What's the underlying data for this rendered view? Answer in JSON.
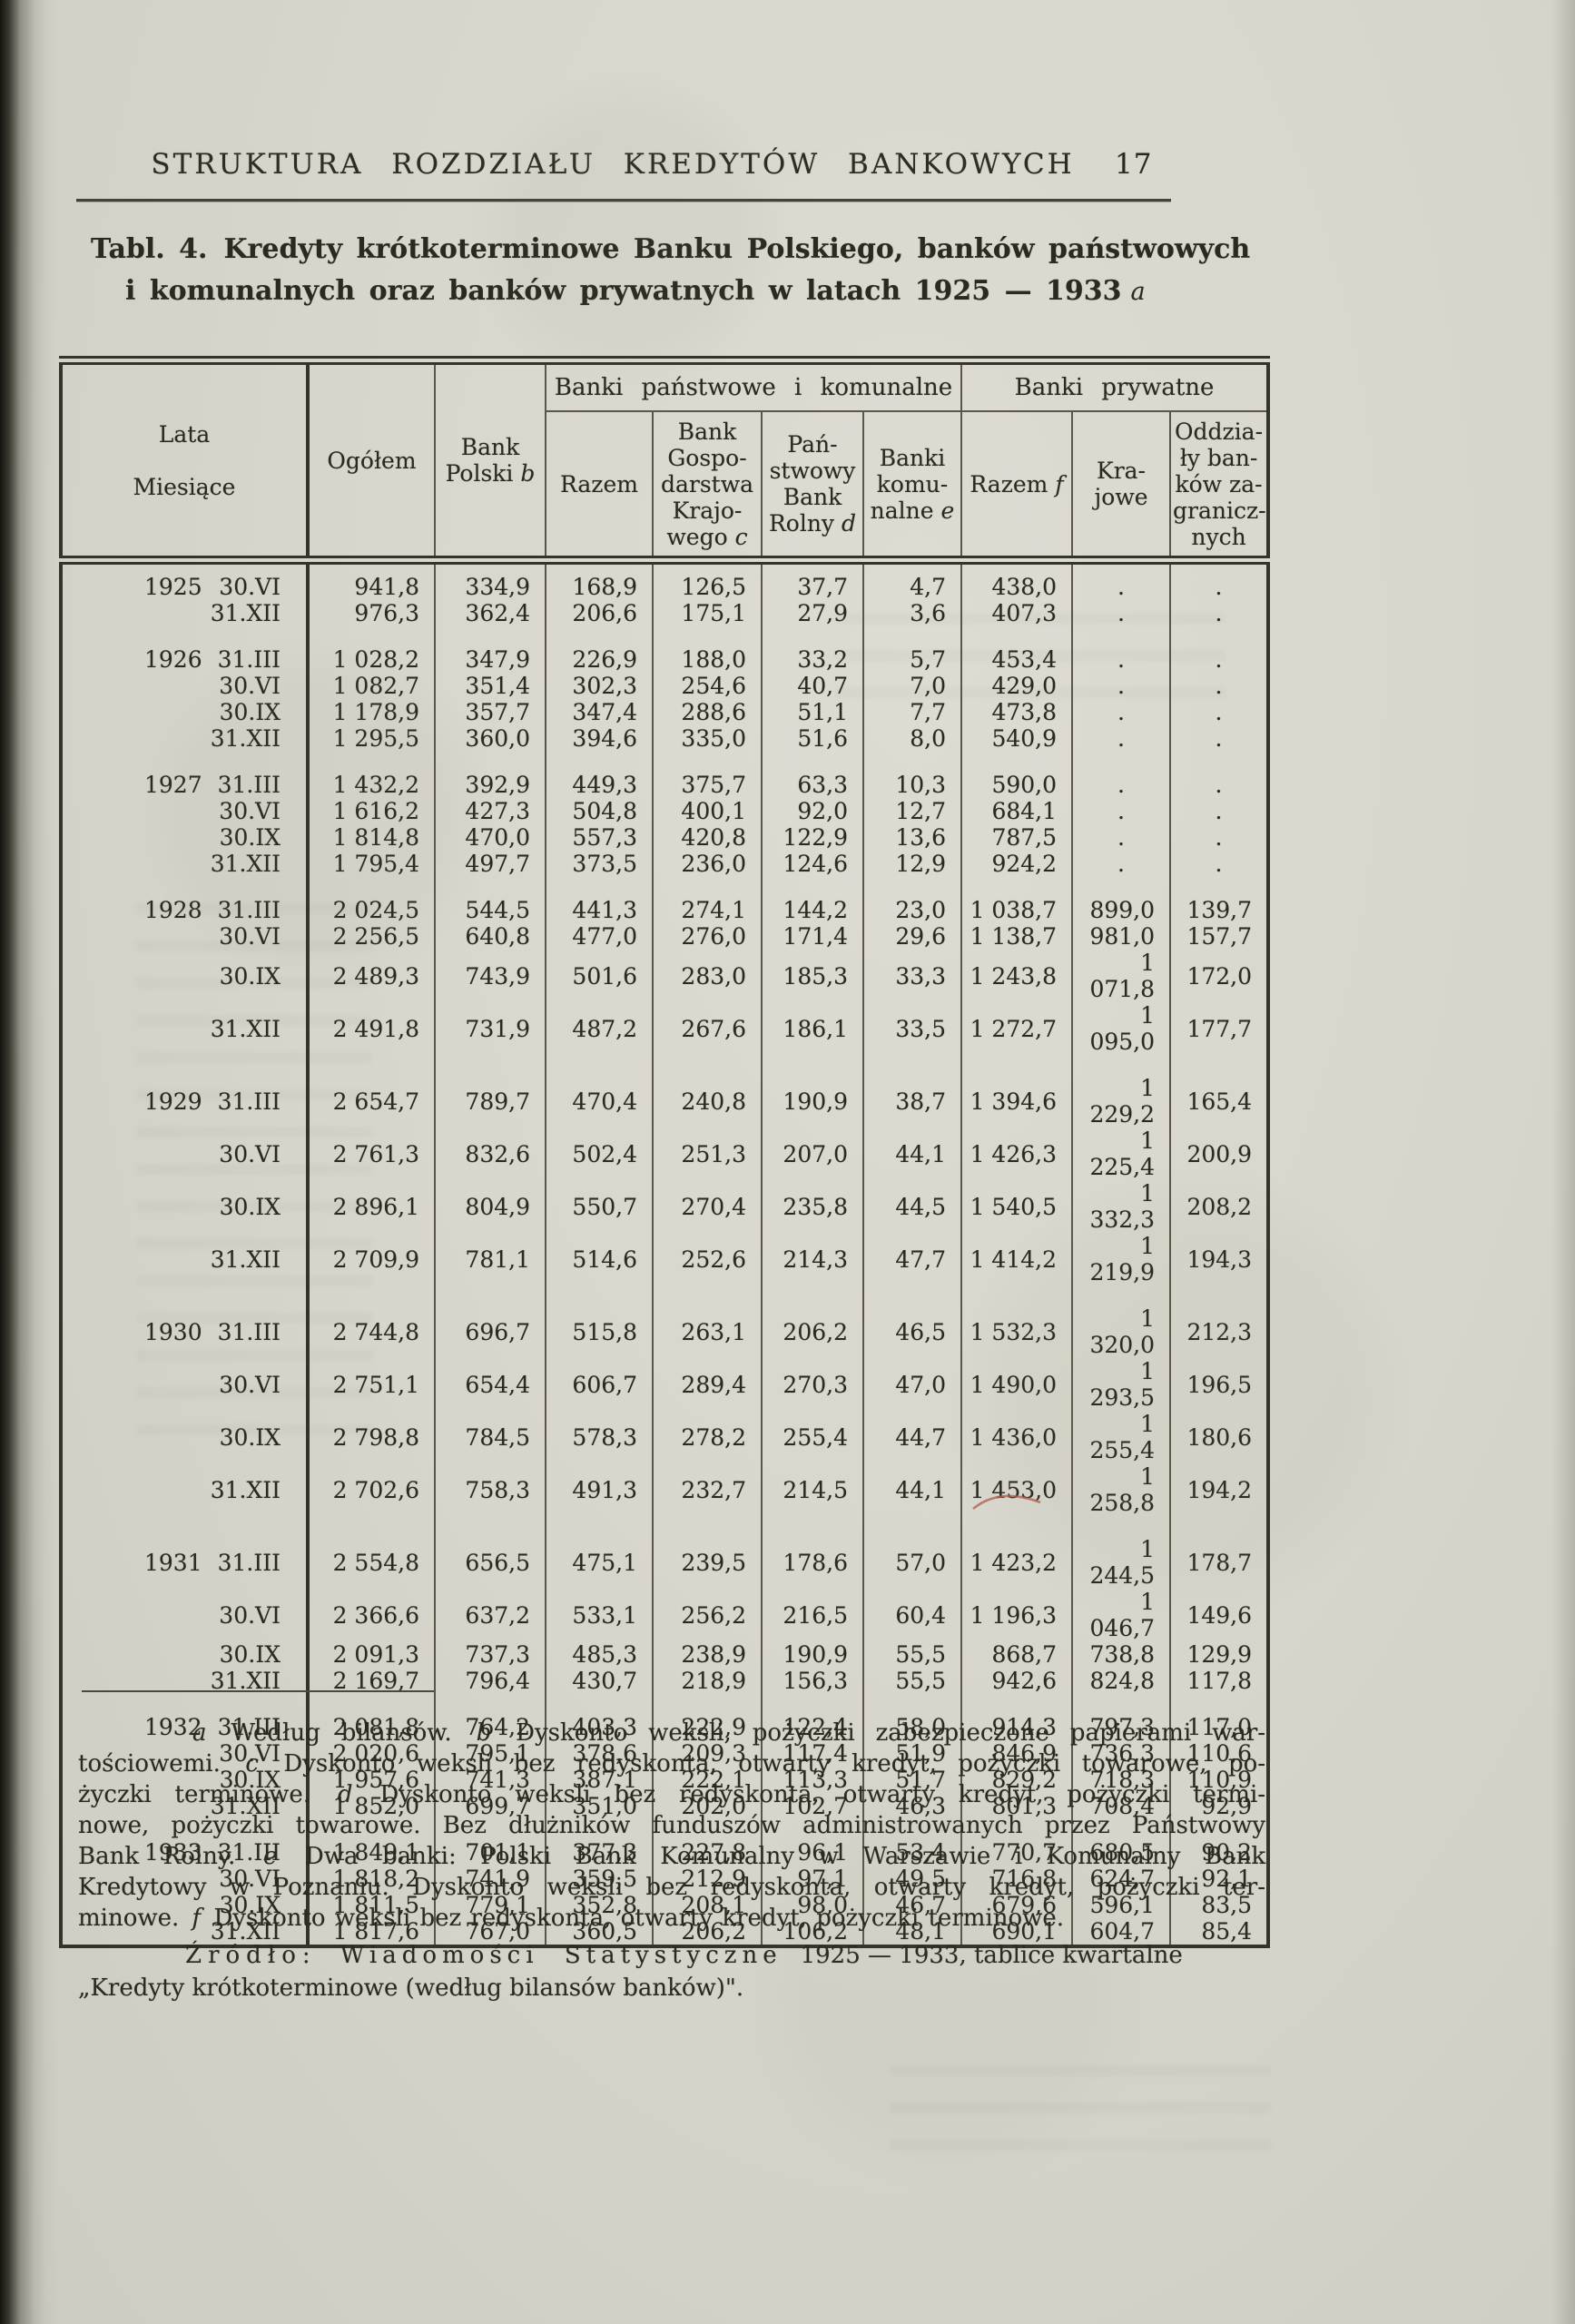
{
  "colors": {
    "paper": "#d7d6cc",
    "ink": "#2b2920",
    "pencil_mark": "#b05a4a"
  },
  "header": {
    "title": "STRUKTURA ROZDZIAŁU KREDYTÓW BANKOWYCH",
    "page_number": "17"
  },
  "caption": {
    "prefix": "Tabl. 4.",
    "line1": "Kredyty krótkoterminowe Banku Polskiego, banków państwowych",
    "line2": "i komunalnych oraz banków prywatnych w latach 1925 — 1933",
    "note": "a"
  },
  "table": {
    "groups": [
      {
        "label": "Banki państwowe i komunalne",
        "colspan": 4
      },
      {
        "label": "Banki prywatne",
        "colspan": 3
      }
    ],
    "columns": [
      {
        "id": "lata-miesiace",
        "label": "Lata\n\nMiesiące"
      },
      {
        "id": "ogolem",
        "label": "Ogółem"
      },
      {
        "id": "bank-polski",
        "label": "Bank\nPolski",
        "note": "b"
      },
      {
        "id": "razem-panstwowe",
        "label": "Razem"
      },
      {
        "id": "bank-gospodarstwa-krajowego",
        "label": "Bank\nGospo-\ndarstwa\nKrajo-\nwego",
        "note": "c"
      },
      {
        "id": "panstwowy-bank-rolny",
        "label": "Pań-\nstwowy\nBank\nRolny",
        "note": "d"
      },
      {
        "id": "banki-komunalne",
        "label": "Banki\nkomu-\nnalne",
        "note": "e"
      },
      {
        "id": "razem-prywatne",
        "label": "Razem",
        "note": "f"
      },
      {
        "id": "krajowe",
        "label": "Kra-\njowe"
      },
      {
        "id": "oddzialy-bankow-zagranicznych",
        "label": "Oddzia-\nły ban-\nków za-\ngranicz-\nnych"
      }
    ],
    "year_groups": [
      {
        "year": "1925",
        "rows": [
          {
            "date": "30.VI",
            "values": [
              "941,8",
              "334,9",
              "168,9",
              "126,5",
              "37,7",
              "4,7",
              "438,0",
              ".",
              "."
            ]
          },
          {
            "date": "31.XII",
            "values": [
              "976,3",
              "362,4",
              "206,6",
              "175,1",
              "27,9",
              "3,6",
              "407,3",
              ".",
              "."
            ]
          }
        ]
      },
      {
        "year": "1926",
        "rows": [
          {
            "date": "31.III",
            "values": [
              "1 028,2",
              "347,9",
              "226,9",
              "188,0",
              "33,2",
              "5,7",
              "453,4",
              ".",
              "."
            ]
          },
          {
            "date": "30.VI",
            "values": [
              "1 082,7",
              "351,4",
              "302,3",
              "254,6",
              "40,7",
              "7,0",
              "429,0",
              ".",
              "."
            ]
          },
          {
            "date": "30.IX",
            "values": [
              "1 178,9",
              "357,7",
              "347,4",
              "288,6",
              "51,1",
              "7,7",
              "473,8",
              ".",
              "."
            ]
          },
          {
            "date": "31.XII",
            "values": [
              "1 295,5",
              "360,0",
              "394,6",
              "335,0",
              "51,6",
              "8,0",
              "540,9",
              ".",
              "."
            ]
          }
        ]
      },
      {
        "year": "1927",
        "rows": [
          {
            "date": "31.III",
            "values": [
              "1 432,2",
              "392,9",
              "449,3",
              "375,7",
              "63,3",
              "10,3",
              "590,0",
              ".",
              "."
            ]
          },
          {
            "date": "30.VI",
            "values": [
              "1 616,2",
              "427,3",
              "504,8",
              "400,1",
              "92,0",
              "12,7",
              "684,1",
              ".",
              "."
            ]
          },
          {
            "date": "30.IX",
            "values": [
              "1 814,8",
              "470,0",
              "557,3",
              "420,8",
              "122,9",
              "13,6",
              "787,5",
              ".",
              "."
            ]
          },
          {
            "date": "31.XII",
            "values": [
              "1 795,4",
              "497,7",
              "373,5",
              "236,0",
              "124,6",
              "12,9",
              "924,2",
              ".",
              "."
            ]
          }
        ]
      },
      {
        "year": "1928",
        "rows": [
          {
            "date": "31.III",
            "values": [
              "2 024,5",
              "544,5",
              "441,3",
              "274,1",
              "144,2",
              "23,0",
              "1 038,7",
              "899,0",
              "139,7"
            ]
          },
          {
            "date": "30.VI",
            "values": [
              "2 256,5",
              "640,8",
              "477,0",
              "276,0",
              "171,4",
              "29,6",
              "1 138,7",
              "981,0",
              "157,7"
            ]
          },
          {
            "date": "30.IX",
            "values": [
              "2 489,3",
              "743,9",
              "501,6",
              "283,0",
              "185,3",
              "33,3",
              "1 243,8",
              "1 071,8",
              "172,0"
            ]
          },
          {
            "date": "31.XII",
            "values": [
              "2 491,8",
              "731,9",
              "487,2",
              "267,6",
              "186,1",
              "33,5",
              "1 272,7",
              "1 095,0",
              "177,7"
            ]
          }
        ]
      },
      {
        "year": "1929",
        "rows": [
          {
            "date": "31.III",
            "values": [
              "2 654,7",
              "789,7",
              "470,4",
              "240,8",
              "190,9",
              "38,7",
              "1 394,6",
              "1 229,2",
              "165,4"
            ]
          },
          {
            "date": "30.VI",
            "values": [
              "2 761,3",
              "832,6",
              "502,4",
              "251,3",
              "207,0",
              "44,1",
              "1 426,3",
              "1 225,4",
              "200,9"
            ]
          },
          {
            "date": "30.IX",
            "values": [
              "2 896,1",
              "804,9",
              "550,7",
              "270,4",
              "235,8",
              "44,5",
              "1 540,5",
              "1 332,3",
              "208,2"
            ]
          },
          {
            "date": "31.XII",
            "values": [
              "2 709,9",
              "781,1",
              "514,6",
              "252,6",
              "214,3",
              "47,7",
              "1 414,2",
              "1 219,9",
              "194,3"
            ]
          }
        ]
      },
      {
        "year": "1930",
        "rows": [
          {
            "date": "31.III",
            "values": [
              "2 744,8",
              "696,7",
              "515,8",
              "263,1",
              "206,2",
              "46,5",
              "1 532,3",
              "1 320,0",
              "212,3"
            ]
          },
          {
            "date": "30.VI",
            "values": [
              "2 751,1",
              "654,4",
              "606,7",
              "289,4",
              "270,3",
              "47,0",
              "1 490,0",
              "1 293,5",
              "196,5"
            ]
          },
          {
            "date": "30.IX",
            "values": [
              "2 798,8",
              "784,5",
              "578,3",
              "278,2",
              "255,4",
              "44,7",
              "1 436,0",
              "1 255,4",
              "180,6"
            ]
          },
          {
            "date": "31.XII",
            "values": [
              "2 702,6",
              "758,3",
              "491,3",
              "232,7",
              "214,5",
              "44,1",
              "1 453,0",
              "1 258,8",
              "194,2"
            ]
          }
        ]
      },
      {
        "year": "1931",
        "rows": [
          {
            "date": "31.III",
            "values": [
              "2 554,8",
              "656,5",
              "475,1",
              "239,5",
              "178,6",
              "57,0",
              "1 423,2",
              "1 244,5",
              "178,7"
            ]
          },
          {
            "date": "30.VI",
            "values": [
              "2 366,6",
              "637,2",
              "533,1",
              "256,2",
              "216,5",
              "60,4",
              "1 196,3",
              "1 046,7",
              "149,6"
            ]
          },
          {
            "date": "30.IX",
            "values": [
              "2 091,3",
              "737,3",
              "485,3",
              "238,9",
              "190,9",
              "55,5",
              "868,7",
              "738,8",
              "129,9"
            ]
          },
          {
            "date": "31.XII",
            "values": [
              "2 169,7",
              "796,4",
              "430,7",
              "218,9",
              "156,3",
              "55,5",
              "942,6",
              "824,8",
              "117,8"
            ]
          }
        ]
      },
      {
        "year": "1932",
        "rows": [
          {
            "date": "31.III",
            "values": [
              "2 081,8",
              "764,2",
              "403,3",
              "222,9",
              "122,4",
              "58,0",
              "914,3",
              "797,3",
              "117,0"
            ]
          },
          {
            "date": "30.VI",
            "values": [
              "2 020,6",
              "795,1",
              "378,6",
              "209,3",
              "117,4",
              "51,9",
              "846,9",
              "736,3",
              "110,6"
            ]
          },
          {
            "date": "30.IX",
            "values": [
              "1 957,6",
              "741,3",
              "387,1",
              "222,1",
              "113,3",
              "51,7",
              "829,2",
              "718,3",
              "110,9"
            ]
          },
          {
            "date": "31.XII",
            "values": [
              "1 852,0",
              "699,7",
              "351,0",
              "202,0",
              "102,7",
              "46,3",
              "801,3",
              "708,4",
              "92,9"
            ]
          }
        ]
      },
      {
        "year": "1933",
        "rows": [
          {
            "date": "31.III",
            "values": [
              "1 849,1",
              "701,1",
              "377,3",
              "227,8",
              "96,1",
              "53,4",
              "770,7",
              "680,5",
              "90,2"
            ]
          },
          {
            "date": "30.VI",
            "values": [
              "1 818,2",
              "741,9",
              "359,5",
              "212,9",
              "97,1",
              "49,5",
              "716,8",
              "624,7",
              "92,1"
            ]
          },
          {
            "date": "30.IX",
            "values": [
              "1 811,5",
              "779,1",
              "352,8",
              "208,1",
              "98,0",
              "46,7",
              "679,6",
              "596,1",
              "83,5"
            ]
          },
          {
            "date": "31.XII",
            "values": [
              "1 817,6",
              "767,0",
              "360,5",
              "206,2",
              "106,2",
              "48,1",
              "690,1",
              "604,7",
              "85,4"
            ]
          }
        ]
      }
    ]
  },
  "footnotes": {
    "lines": [
      "a Według bilansów. b Dyskonto weksli, pożyczki zabezpieczone papierami war-",
      "tościowemi. c Dyskonto weksli bez redyskonta, otwarty kredyt, pożyczki towarowe, po-",
      "życzki terminowe. d Dyskonto weksli bez redyskonta, otwarty kredyt, pożyczki termi-",
      "nowe, pożyczki towarowe. Bez dłużników funduszów administrowanych przez Państwowy",
      "Bank Rolny. e Dwa banki: Polski Bank Komunalny w Warszawie i Komunalny Bank",
      "Kredytowy w Poznaniu. Dyskonto weksli bez redyskonta, otwarty kredyt, pożyczki ter-",
      "minowe. f Dyskonto weksli bez redyskonta, otwarty kredyt, pożyczki terminowe."
    ]
  },
  "source": {
    "label": "Źródło:",
    "journal": "Wiadomości Statystyczne",
    "tail": "1925 — 1933, tablice kwartalne",
    "line2": "„Kredyty krótkoterminowe  (według bilansów banków)\"."
  }
}
